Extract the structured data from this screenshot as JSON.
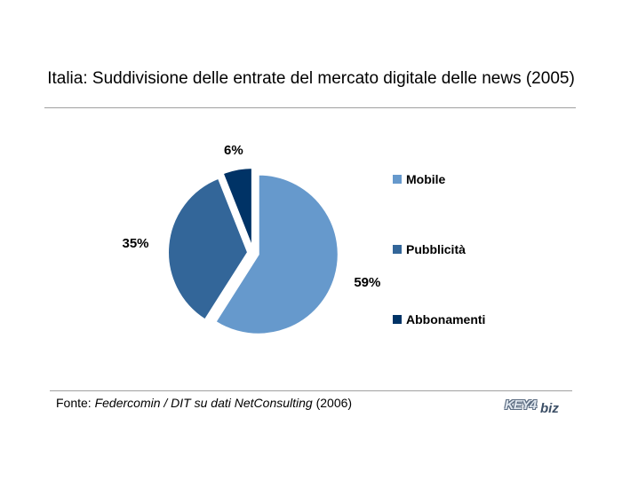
{
  "title": "Italia: Suddivisione delle entrate del mercato digitale delle news (2005)",
  "chart_data": {
    "type": "pie",
    "title": "Italia: Suddivisione delle entrate del mercato digitale delle news (2005)",
    "slices": [
      {
        "label": "Mobile",
        "value": 59,
        "display": "59%",
        "color": "#6699cc"
      },
      {
        "label": "Pubblicità",
        "value": 35,
        "display": "35%",
        "color": "#336699"
      },
      {
        "label": "Abbonamenti",
        "value": 6,
        "display": "6%",
        "color": "#003366"
      }
    ],
    "exploded": true,
    "legend_position": "right"
  },
  "source": {
    "prefix": "Fonte: ",
    "italic": "Federcomin / DIT su dati NetConsulting",
    "suffix": " (2006)"
  },
  "logo": {
    "part1": "KEY4",
    "part2": "biz",
    "description": "key4biz-logo"
  }
}
